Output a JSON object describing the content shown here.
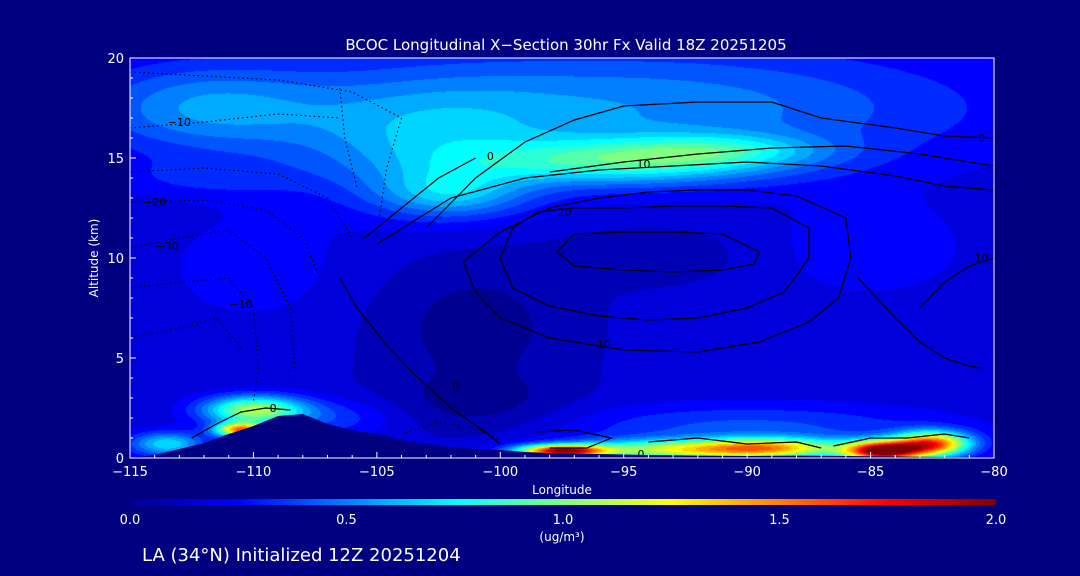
{
  "chart_data": {
    "type": "heatmap",
    "title": "BCOC Longitudinal X−Section 30hr  Fx Valid 18Z 20251205",
    "xlabel": "Longitude",
    "ylabel": "Altitude (km)",
    "xlim": [
      -115,
      -80
    ],
    "ylim": [
      0,
      20
    ],
    "x_ticks": [
      -115,
      -110,
      -105,
      -100,
      -95,
      -90,
      -85,
      -80
    ],
    "x_tick_labels": [
      "−115",
      "−110",
      "−105",
      "−100",
      "−95",
      "−90",
      "−85",
      "−80"
    ],
    "y_ticks": [
      0,
      5,
      10,
      15,
      20
    ],
    "y_tick_labels": [
      "0",
      "5",
      "10",
      "15",
      "20"
    ],
    "colorbar": {
      "min": 0.0,
      "max": 2.0,
      "ticks": [
        0.0,
        0.5,
        1.0,
        1.5,
        2.0
      ],
      "tick_labels": [
        "0.0",
        "0.5",
        "1.0",
        "1.5",
        "2.0"
      ],
      "unit_label": "(ug/m³)",
      "colors": [
        "#000090",
        "#0000ff",
        "#0080ff",
        "#00ffff",
        "#80ff80",
        "#ffff00",
        "#ff8000",
        "#ff0000",
        "#800000"
      ]
    },
    "background_level": 0.15,
    "blobs": [
      {
        "lon": -95,
        "alt": 17.5,
        "slon": 14,
        "salt": 3.2,
        "v": 0.38
      },
      {
        "lon": -112,
        "alt": 17.5,
        "slon": 5,
        "salt": 2.2,
        "v": 0.33
      },
      {
        "lon": -103,
        "alt": 15.5,
        "slon": 5,
        "salt": 3.0,
        "v": 0.28
      },
      {
        "lon": -95,
        "alt": 14.8,
        "slon": 6,
        "salt": 1.1,
        "v": 0.55
      },
      {
        "lon": -91,
        "alt": 15.4,
        "slon": 4,
        "salt": 0.8,
        "v": 0.3
      },
      {
        "lon": -102,
        "alt": 13.2,
        "slon": 3,
        "salt": 1.2,
        "v": 0.35
      },
      {
        "lon": -112,
        "alt": 14.0,
        "slon": 4,
        "salt": 1.0,
        "v": 0.12
      },
      {
        "lon": -110,
        "alt": 2.4,
        "slon": 2.0,
        "salt": 0.7,
        "v": 0.9
      },
      {
        "lon": -110.5,
        "alt": 1.4,
        "slon": 1.0,
        "salt": 0.35,
        "v": 1.3
      },
      {
        "lon": -113.5,
        "alt": 0.7,
        "slon": 1.5,
        "salt": 0.6,
        "v": 0.55
      },
      {
        "lon": -107,
        "alt": 2.0,
        "slon": 3,
        "salt": 1.0,
        "v": 0.2
      },
      {
        "lon": -97.5,
        "alt": 0.35,
        "slon": 1.7,
        "salt": 0.3,
        "v": 1.55
      },
      {
        "lon": -93,
        "alt": 0.4,
        "slon": 4.5,
        "salt": 0.5,
        "v": 0.85
      },
      {
        "lon": -89,
        "alt": 0.5,
        "slon": 3,
        "salt": 0.5,
        "v": 0.9
      },
      {
        "lon": -84.5,
        "alt": 0.35,
        "slon": 1.5,
        "salt": 0.5,
        "v": 1.8
      },
      {
        "lon": -82.5,
        "alt": 0.7,
        "slon": 1.5,
        "salt": 0.6,
        "v": 1.4
      },
      {
        "lon": -90,
        "alt": 1.5,
        "slon": 8,
        "salt": 1.2,
        "v": 0.25
      },
      {
        "lon": -85,
        "alt": 10.5,
        "slon": 4,
        "salt": 2.5,
        "v": 0.12
      },
      {
        "lon": -110,
        "alt": 9.5,
        "slon": 4,
        "salt": 3.0,
        "v": 0.1
      },
      {
        "lon": -94,
        "alt": 10.2,
        "slon": 4,
        "salt": 1.5,
        "v": -0.08
      }
    ],
    "sinks": [
      {
        "lon": -101,
        "alt": 6.5,
        "slon": 4,
        "salt": 3.5,
        "v": 0.15
      },
      {
        "lon": -101,
        "alt": 2.5,
        "slon": 4,
        "salt": 1.5,
        "v": 0.12
      }
    ],
    "terrain": [
      [
        -115,
        0.0
      ],
      [
        -114,
        0.15
      ],
      [
        -113,
        0.45
      ],
      [
        -112,
        0.75
      ],
      [
        -111,
        1.2
      ],
      [
        -110,
        1.6
      ],
      [
        -109,
        2.1
      ],
      [
        -108,
        2.2
      ],
      [
        -107,
        1.7
      ],
      [
        -106,
        1.4
      ],
      [
        -105,
        1.2
      ],
      [
        -104,
        0.9
      ],
      [
        -103,
        0.7
      ],
      [
        -102,
        0.55
      ],
      [
        -101,
        0.45
      ],
      [
        -100,
        0.4
      ],
      [
        -99,
        0.3
      ],
      [
        -98,
        0.25
      ],
      [
        -96,
        0.2
      ],
      [
        -94,
        0.15
      ],
      [
        -92,
        0.12
      ],
      [
        -90,
        0.1
      ],
      [
        -88,
        0.12
      ],
      [
        -86,
        0.1
      ],
      [
        -84,
        0.08
      ],
      [
        -82,
        0.05
      ],
      [
        -80,
        0.05
      ]
    ],
    "contours": [
      {
        "style": "solid",
        "points": [
          [
            -98.5,
            12.3
          ],
          [
            -97,
            12.5
          ],
          [
            -95,
            12.5
          ],
          [
            -93,
            12.6
          ],
          [
            -91,
            12.6
          ],
          [
            -89,
            12.5
          ],
          [
            -87.5,
            11.5
          ],
          [
            -87.5,
            10.0
          ],
          [
            -88.5,
            8.3
          ],
          [
            -90,
            7.5
          ],
          [
            -92,
            7.0
          ],
          [
            -94,
            6.9
          ],
          [
            -96,
            7.1
          ],
          [
            -98,
            7.6
          ],
          [
            -99.5,
            8.5
          ],
          [
            -100,
            10.0
          ],
          [
            -99.5,
            11.5
          ],
          [
            -98.5,
            12.3
          ]
        ]
      },
      {
        "style": "solid",
        "points": [
          [
            -97,
            11.2
          ],
          [
            -95,
            11.3
          ],
          [
            -93,
            11.3
          ],
          [
            -91,
            11.2
          ],
          [
            -89.5,
            10.3
          ],
          [
            -89.7,
            9.7
          ],
          [
            -91,
            9.4
          ],
          [
            -93,
            9.3
          ],
          [
            -95,
            9.4
          ],
          [
            -97,
            9.6
          ],
          [
            -97.7,
            10.3
          ],
          [
            -97,
            11.2
          ]
        ]
      },
      {
        "style": "solid",
        "points": [
          [
            -101.5,
            9.8
          ],
          [
            -100,
            11.3
          ],
          [
            -98,
            12.5
          ],
          [
            -96,
            13.0
          ],
          [
            -94,
            13.3
          ],
          [
            -92,
            13.4
          ],
          [
            -90,
            13.4
          ],
          [
            -88,
            13.1
          ],
          [
            -86,
            12.0
          ],
          [
            -85.8,
            10.0
          ],
          [
            -86.3,
            8.0
          ],
          [
            -87.5,
            6.8
          ],
          [
            -89.5,
            5.8
          ],
          [
            -92,
            5.3
          ],
          [
            -95,
            5.4
          ],
          [
            -98,
            6.0
          ],
          [
            -100,
            7.0
          ],
          [
            -101,
            8.3
          ],
          [
            -101.5,
            9.8
          ]
        ]
      },
      {
        "style": "solid",
        "points": [
          [
            -105,
            10.7
          ],
          [
            -102,
            13.0
          ],
          [
            -99,
            14.0
          ],
          [
            -96,
            14.4
          ],
          [
            -93,
            14.6
          ],
          [
            -90,
            14.8
          ],
          [
            -87,
            14.6
          ],
          [
            -84,
            14.1
          ],
          [
            -82,
            13.6
          ],
          [
            -80,
            13.4
          ]
        ]
      },
      {
        "style": "solid",
        "points": [
          [
            -98,
            14.3
          ],
          [
            -95,
            14.8
          ],
          [
            -92,
            15.2
          ],
          [
            -89,
            15.5
          ],
          [
            -86,
            15.6
          ],
          [
            -83,
            15.2
          ],
          [
            -80,
            14.6
          ]
        ]
      },
      {
        "style": "solid",
        "points": [
          [
            -103,
            11.5
          ],
          [
            -101,
            14.0
          ],
          [
            -99,
            15.8
          ],
          [
            -97,
            16.9
          ],
          [
            -95,
            17.6
          ],
          [
            -92,
            17.8
          ],
          [
            -89,
            17.8
          ],
          [
            -87,
            17.0
          ],
          [
            -84,
            16.5
          ],
          [
            -82,
            16.1
          ],
          [
            -80,
            16.0
          ]
        ]
      },
      {
        "style": "solid",
        "points": [
          [
            -105.5,
            11.0
          ],
          [
            -104,
            12.5
          ],
          [
            -102.5,
            14.0
          ],
          [
            -101,
            15.0
          ]
        ]
      },
      {
        "style": "solid",
        "points": [
          [
            -108.5,
            2.4
          ],
          [
            -109.5,
            2.5
          ],
          [
            -110.5,
            2.3
          ],
          [
            -111.5,
            1.7
          ],
          [
            -112.5,
            1.0
          ]
        ]
      },
      {
        "style": "solid",
        "points": [
          [
            -106.5,
            9.0
          ],
          [
            -105.8,
            7.5
          ],
          [
            -104.5,
            5.5
          ],
          [
            -103.5,
            4.2
          ],
          [
            -102.0,
            2.5
          ],
          [
            -100.5,
            1.2
          ],
          [
            -100.0,
            0.7
          ]
        ]
      },
      {
        "style": "solid",
        "points": [
          [
            -98.5,
            1.3
          ],
          [
            -97,
            1.4
          ],
          [
            -95.5,
            1.0
          ],
          [
            -96.5,
            0.5
          ],
          [
            -98.0,
            0.5
          ]
        ]
      },
      {
        "style": "solid",
        "points": [
          [
            -94,
            0.8
          ],
          [
            -92,
            1.0
          ],
          [
            -90,
            0.7
          ],
          [
            -88,
            0.8
          ],
          [
            -87,
            0.5
          ]
        ]
      },
      {
        "style": "solid",
        "points": [
          [
            -86.5,
            0.6
          ],
          [
            -85,
            1.0
          ],
          [
            -83.5,
            1.0
          ],
          [
            -82,
            1.2
          ],
          [
            -81,
            1.0
          ]
        ]
      },
      {
        "style": "solid",
        "points": [
          [
            -85.5,
            9.0
          ],
          [
            -84,
            7.0
          ],
          [
            -83,
            5.8
          ],
          [
            -82,
            5.0
          ],
          [
            -81,
            4.6
          ],
          [
            -80.5,
            4.5
          ]
        ]
      },
      {
        "style": "solid",
        "points": [
          [
            -83,
            7.5
          ],
          [
            -82,
            8.8
          ],
          [
            -81,
            9.6
          ],
          [
            -80,
            10.0
          ]
        ]
      },
      {
        "style": "dotted",
        "points": [
          [
            -115,
            19.3
          ],
          [
            -112,
            19.1
          ],
          [
            -109,
            18.9
          ],
          [
            -106,
            18.3
          ],
          [
            -104,
            17.0
          ]
        ]
      },
      {
        "style": "dotted",
        "points": [
          [
            -115,
            16.5
          ],
          [
            -112,
            16.8
          ],
          [
            -109,
            17.2
          ],
          [
            -106.5,
            17.0
          ]
        ]
      },
      {
        "style": "dotted",
        "points": [
          [
            -115,
            14.3
          ],
          [
            -112,
            14.5
          ],
          [
            -109,
            14.2
          ],
          [
            -107,
            13.0
          ],
          [
            -106,
            11.0
          ]
        ]
      },
      {
        "style": "dotted",
        "points": [
          [
            -115,
            12.8
          ],
          [
            -112,
            12.9
          ],
          [
            -109.5,
            12.4
          ],
          [
            -108,
            11.0
          ],
          [
            -107.3,
            9.0
          ]
        ]
      },
      {
        "style": "dotted",
        "points": [
          [
            -115,
            10.5
          ],
          [
            -113,
            11.0
          ],
          [
            -111,
            11.4
          ],
          [
            -109.5,
            10.0
          ],
          [
            -108.5,
            7.5
          ],
          [
            -108.3,
            4.0
          ]
        ]
      },
      {
        "style": "dotted",
        "points": [
          [
            -115,
            8.5
          ],
          [
            -113,
            8.8
          ],
          [
            -111,
            9.0
          ],
          [
            -110,
            7.5
          ],
          [
            -109.8,
            4.5
          ],
          [
            -110,
            2.8
          ]
        ]
      },
      {
        "style": "dotted",
        "points": [
          [
            -104,
            17.0
          ],
          [
            -104.6,
            14.5
          ],
          [
            -104.9,
            12.0
          ]
        ]
      },
      {
        "style": "dotted",
        "points": [
          [
            -106.5,
            18.5
          ],
          [
            -106.3,
            16.0
          ],
          [
            -105.8,
            13.5
          ]
        ]
      },
      {
        "style": "dotted",
        "points": [
          [
            -115,
            6.0
          ],
          [
            -113,
            6.5
          ],
          [
            -111.5,
            7.0
          ],
          [
            -110.5,
            5.5
          ]
        ]
      },
      {
        "style": "dotted",
        "points": [
          [
            -104,
            1.2
          ],
          [
            -102.5,
            1.8
          ],
          [
            -101,
            1.5
          ],
          [
            -100,
            0.9
          ]
        ]
      }
    ],
    "contour_labels": [
      {
        "text": "−10",
        "lon": -113.0,
        "alt": 16.8
      },
      {
        "text": "−20",
        "lon": -114.0,
        "alt": 12.8
      },
      {
        "text": "−30",
        "lon": -113.5,
        "alt": 10.6
      },
      {
        "text": "−10",
        "lon": -110.5,
        "alt": 7.7
      },
      {
        "text": "0",
        "lon": -109.2,
        "alt": 2.5
      },
      {
        "text": "0",
        "lon": -101.8,
        "alt": 3.6
      },
      {
        "text": "0",
        "lon": -100.4,
        "alt": 15.1
      },
      {
        "text": "10",
        "lon": -94.2,
        "alt": 14.7
      },
      {
        "text": "20",
        "lon": -97.4,
        "alt": 12.3
      },
      {
        "text": "10",
        "lon": -95.8,
        "alt": 5.7
      },
      {
        "text": "0",
        "lon": -94.3,
        "alt": 0.2
      },
      {
        "text": "0",
        "lon": -80.5,
        "alt": 16.0
      },
      {
        "text": "10",
        "lon": -80.5,
        "alt": 10.0
      }
    ]
  },
  "footer": {
    "text": "LA (34°N) Initialized 12Z 20251204"
  }
}
